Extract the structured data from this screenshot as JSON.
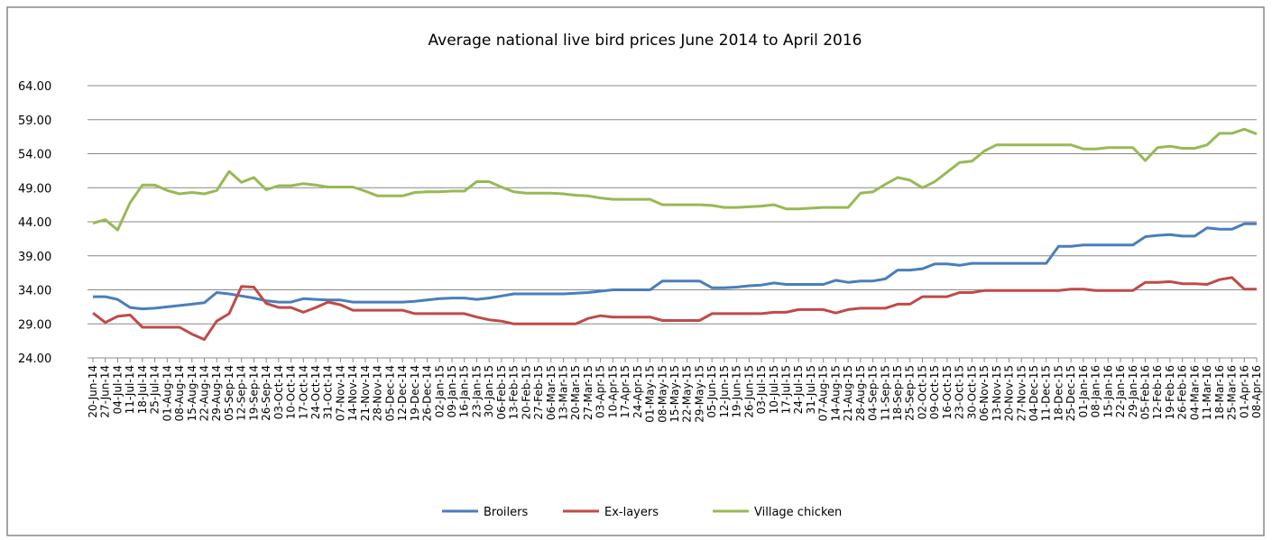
{
  "chart_data": {
    "type": "line",
    "title": "Average national live bird prices June 2014 to  April 2016",
    "categories": [
      "20-Jun-14",
      "27-Jun-14",
      "04-Jul-14",
      "11-Jul-14",
      "18-Jul-14",
      "25-Jul-14",
      "01-Aug-14",
      "08-Aug-14",
      "15-Aug-14",
      "22-Aug-14",
      "29-Aug-14",
      "05-Sep-14",
      "12-Sep-14",
      "19-Sep-14",
      "26-Sep-14",
      "03-Oct-14",
      "10-Oct-14",
      "17-Oct-14",
      "24-Oct-14",
      "31-Oct-14",
      "07-Nov-14",
      "14-Nov-14",
      "21-Nov-14",
      "28-Nov-14",
      "05-Dec-14",
      "12-Dec-14",
      "19-Dec-14",
      "26-Dec-14",
      "02-Jan-15",
      "09-Jan-15",
      "16-Jan-15",
      "23-Jan-15",
      "30-Jan-15",
      "06-Feb-15",
      "13-Feb-15",
      "20-Feb-15",
      "27-Feb-15",
      "06-Mar-15",
      "13-Mar-15",
      "20-Mar-15",
      "27-Mar-15",
      "03-Apr-15",
      "10-Apr-15",
      "17-Apr-15",
      "24-Apr-15",
      "01-May-15",
      "08-May-15",
      "15-May-15",
      "22-May-15",
      "29-May-15",
      "05-Jun-15",
      "12-Jun-15",
      "19-Jun-15",
      "26-Jun-15",
      "03-Jul-15",
      "10-Jul-15",
      "17-Jul-15",
      "24-Jul-15",
      "31-Jul-15",
      "07-Aug-15",
      "14-Aug-15",
      "21-Aug-15",
      "28-Aug-15",
      "04-Sep-15",
      "11-Sep-15",
      "18-Sep-15",
      "25-Sep-15",
      "02-Oct-15",
      "09-Oct-15",
      "16-Oct-15",
      "23-Oct-15",
      "30-Oct-15",
      "06-Nov-15",
      "13-Nov-15",
      "20-Nov-15",
      "27-Nov-15",
      "04-Dec-15",
      "11-Dec-15",
      "18-Dec-15",
      "25-Dec-15",
      "01-Jan-16",
      "08-Jan-16",
      "15-Jan-16",
      "22-Jan-16",
      "29-Jan-16",
      "05-Feb-16",
      "12-Feb-16",
      "19-Feb-16",
      "26-Feb-16",
      "04-Mar-16",
      "11-Mar-16",
      "18-Mar-16",
      "25-Mar-16",
      "01-Apr-16",
      "08-Apr-16"
    ],
    "series": [
      {
        "name": "Broilers",
        "color": "#4a7ebb",
        "values": [
          33.0,
          33.0,
          32.6,
          31.4,
          31.2,
          31.3,
          31.5,
          31.7,
          31.9,
          32.1,
          33.6,
          33.4,
          33.1,
          32.8,
          32.4,
          32.2,
          32.2,
          32.7,
          32.6,
          32.5,
          32.5,
          32.2,
          32.2,
          32.2,
          32.2,
          32.2,
          32.3,
          32.5,
          32.7,
          32.8,
          32.8,
          32.6,
          32.8,
          33.1,
          33.4,
          33.4,
          33.4,
          33.4,
          33.4,
          33.5,
          33.6,
          33.8,
          34.0,
          34.0,
          34.0,
          34.0,
          35.3,
          35.3,
          35.3,
          35.3,
          34.3,
          34.3,
          34.4,
          34.6,
          34.7,
          35.0,
          34.8,
          34.8,
          34.8,
          34.8,
          35.4,
          35.1,
          35.3,
          35.3,
          35.6,
          36.9,
          36.9,
          37.1,
          37.8,
          37.8,
          37.6,
          37.9,
          37.9,
          37.9,
          37.9,
          37.9,
          37.9,
          37.9,
          40.4,
          40.4,
          40.6,
          40.6,
          40.6,
          40.6,
          40.6,
          41.8,
          42.0,
          42.1,
          41.9,
          41.9,
          43.1,
          42.9,
          42.9,
          43.7,
          43.7
        ]
      },
      {
        "name": "Ex-layers",
        "color": "#be4b48",
        "values": [
          30.6,
          29.2,
          30.1,
          30.3,
          28.5,
          28.5,
          28.5,
          28.5,
          27.5,
          26.7,
          29.4,
          30.5,
          34.5,
          34.4,
          32.0,
          31.4,
          31.4,
          30.7,
          31.4,
          32.2,
          31.8,
          31.0,
          31.0,
          31.0,
          31.0,
          31.0,
          30.5,
          30.5,
          30.5,
          30.5,
          30.5,
          30.0,
          29.6,
          29.4,
          29.0,
          29.0,
          29.0,
          29.0,
          29.0,
          29.0,
          29.8,
          30.2,
          30.0,
          30.0,
          30.0,
          30.0,
          29.5,
          29.5,
          29.5,
          29.5,
          30.5,
          30.5,
          30.5,
          30.5,
          30.5,
          30.7,
          30.7,
          31.1,
          31.1,
          31.1,
          30.6,
          31.1,
          31.3,
          31.3,
          31.3,
          31.9,
          31.9,
          33.0,
          33.0,
          33.0,
          33.6,
          33.6,
          33.9,
          33.9,
          33.9,
          33.9,
          33.9,
          33.9,
          33.9,
          34.1,
          34.1,
          33.9,
          33.9,
          33.9,
          33.9,
          35.1,
          35.1,
          35.2,
          34.9,
          34.9,
          34.8,
          35.5,
          35.8,
          34.1,
          34.1
        ]
      },
      {
        "name": "Village chicken",
        "color": "#98b954",
        "values": [
          43.8,
          44.3,
          42.8,
          46.8,
          49.4,
          49.4,
          48.6,
          48.1,
          48.3,
          48.1,
          48.6,
          51.4,
          49.8,
          50.5,
          48.7,
          49.3,
          49.3,
          49.6,
          49.4,
          49.1,
          49.1,
          49.1,
          48.5,
          47.8,
          47.8,
          47.8,
          48.3,
          48.4,
          48.4,
          48.5,
          48.5,
          49.9,
          49.9,
          49.1,
          48.4,
          48.2,
          48.2,
          48.2,
          48.1,
          47.9,
          47.8,
          47.5,
          47.3,
          47.3,
          47.3,
          47.3,
          46.5,
          46.5,
          46.5,
          46.5,
          46.4,
          46.1,
          46.1,
          46.2,
          46.3,
          46.5,
          45.9,
          45.9,
          46.0,
          46.1,
          46.1,
          46.1,
          48.2,
          48.4,
          49.5,
          50.5,
          50.1,
          49.0,
          49.9,
          51.3,
          52.7,
          52.9,
          54.4,
          55.3,
          55.3,
          55.3,
          55.3,
          55.3,
          55.3,
          55.3,
          54.7,
          54.7,
          54.9,
          54.9,
          54.9,
          53.0,
          54.9,
          55.1,
          54.8,
          54.8,
          55.3,
          57.0,
          57.0,
          57.6,
          56.9
        ]
      }
    ],
    "ylim": [
      24,
      64
    ],
    "yticks": [
      {
        "value": 24,
        "label": "24.00"
      },
      {
        "value": 29,
        "label": "29.00"
      },
      {
        "value": 34,
        "label": "34.00"
      },
      {
        "value": 39,
        "label": "39.00"
      },
      {
        "value": 44,
        "label": "44.00"
      },
      {
        "value": 49,
        "label": "49.00"
      },
      {
        "value": 54,
        "label": "54.00"
      },
      {
        "value": 59,
        "label": "59.00"
      },
      {
        "value": 64,
        "label": "64.00"
      }
    ],
    "grid": true,
    "legend": "bottom"
  }
}
